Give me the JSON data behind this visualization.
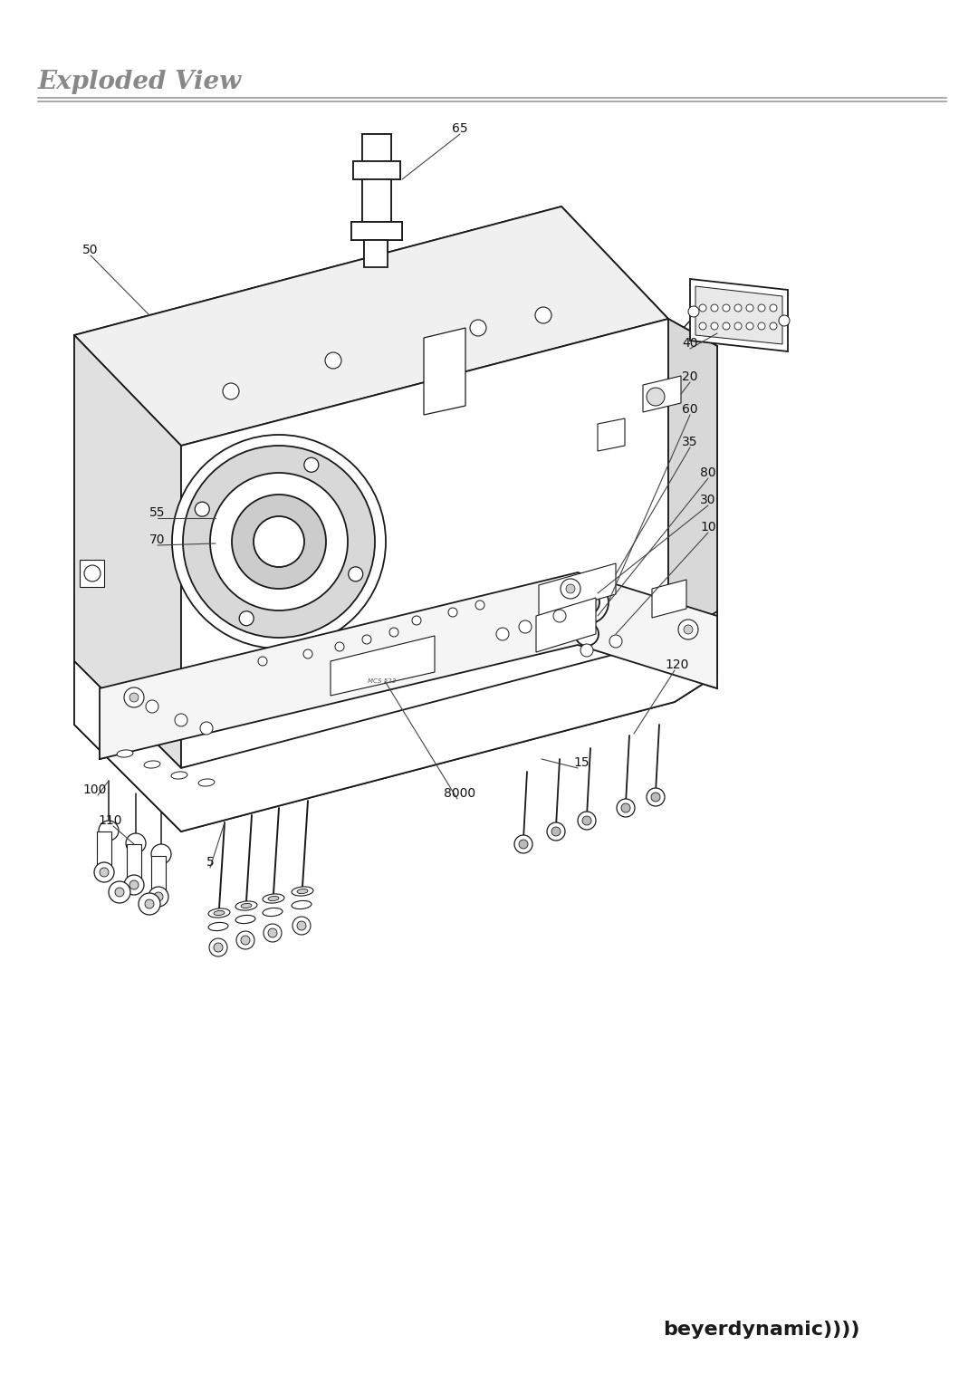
{
  "background_color": "#ffffff",
  "line_color": "#1a1a1a",
  "gray_color": "#888888",
  "title": "Exploded View",
  "logo": "beyerdynamic))))",
  "figsize": [
    10.8,
    15.28
  ],
  "dpi": 100
}
